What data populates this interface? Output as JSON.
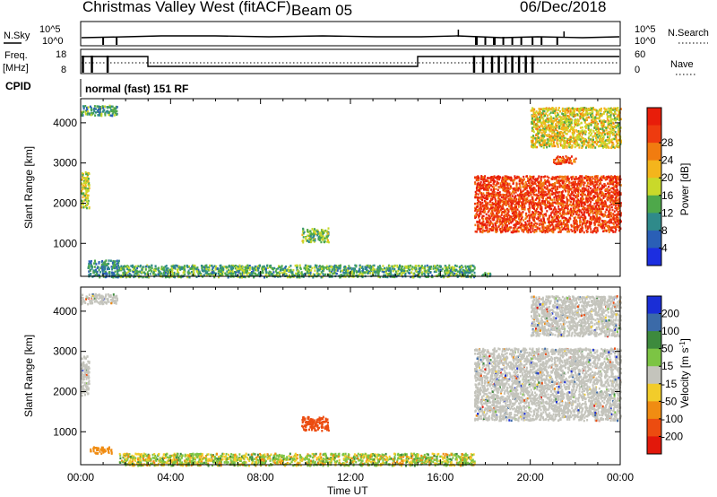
{
  "header": {
    "title": "Christmas Valley West (fitACF)",
    "beam": "Beam 05",
    "date": "06/Dec/2018"
  },
  "top_panels": {
    "nsky_label": "N.Sky",
    "nsky_ticks": [
      "10^5",
      "10^0"
    ],
    "nsearch_label": "N.Search",
    "nsearch_ticks": [
      "10^5",
      "10^0"
    ],
    "freq_label": "Freq.",
    "freq_unit": "[MHz]",
    "freq_ticks": [
      "18",
      "8"
    ],
    "nave_label": "Nave",
    "nave_ticks": [
      "60",
      "0"
    ],
    "cpid_label": "CPID",
    "cpid_text": "normal (fast) 151 RF"
  },
  "colors": {
    "power_scale": [
      "#1c2ee0",
      "#2a5fb6",
      "#2f8a8a",
      "#4ea84a",
      "#c9d92a",
      "#f4b51c",
      "#f17c10",
      "#ee3b0f",
      "#e81d0a"
    ],
    "velocity_scale": [
      "#1a2ed6",
      "#3b6aa8",
      "#3d8a3d",
      "#7cc444",
      "#c4c4bc",
      "#f2cc2a",
      "#f08c12",
      "#ec4c10",
      "#e2180b"
    ],
    "ground_scatter": "#c4c4bc"
  },
  "chart_data": [
    {
      "type": "heatmap",
      "name_id": "power",
      "xlabel": "",
      "ylabel": "Slant Range [km]",
      "x_range_hours": [
        0,
        24
      ],
      "ylim": [
        180,
        4600
      ],
      "yticks": [
        "1000",
        "2000",
        "3000",
        "4000"
      ],
      "colorbar_label": "Power [dB]",
      "colorbar_ticks": [
        "4",
        "8",
        "12",
        "16",
        "20",
        "24",
        "28"
      ],
      "regions": [
        {
          "x": [
            0.0,
            0.35
          ],
          "y": [
            1900,
            2800
          ],
          "level": 0.5
        },
        {
          "x": [
            0.0,
            1.6
          ],
          "y": [
            4200,
            4450
          ],
          "level": 0.3
        },
        {
          "x": [
            0.3,
            1.7
          ],
          "y": [
            180,
            600
          ],
          "level": 0.25
        },
        {
          "x": [
            1.7,
            17.5
          ],
          "y": [
            180,
            480
          ],
          "level": 0.35
        },
        {
          "x": [
            9.8,
            11.0
          ],
          "y": [
            1050,
            1400
          ],
          "level": 0.4
        },
        {
          "x": [
            17.5,
            24.0
          ],
          "y": [
            1300,
            2700
          ],
          "level": 0.9
        },
        {
          "x": [
            20.0,
            24.0
          ],
          "y": [
            3400,
            4400
          ],
          "level": 0.55
        },
        {
          "x": [
            21.0,
            22.0
          ],
          "y": [
            3000,
            3200
          ],
          "level": 0.85
        },
        {
          "x": [
            17.8,
            18.2
          ],
          "y": [
            180,
            300
          ],
          "level": 0.4
        }
      ]
    },
    {
      "type": "heatmap",
      "name_id": "velocity",
      "xlabel": "Time UT",
      "ylabel": "Slant Range [km]",
      "x_range_hours": [
        0,
        24
      ],
      "ylim": [
        180,
        4600
      ],
      "xticks": [
        "00:00",
        "04:00",
        "08:00",
        "12:00",
        "16:00",
        "20:00",
        "00:00"
      ],
      "yticks": [
        "1000",
        "2000",
        "3000",
        "4000"
      ],
      "colorbar_label": "Velocity [m s",
      "colorbar_ticks": [
        "200",
        "100",
        "50",
        "15",
        "-15",
        "-50",
        "-100",
        "-200"
      ],
      "regions": [
        {
          "x": [
            0.0,
            0.35
          ],
          "y": [
            1900,
            2900
          ],
          "level": "ground"
        },
        {
          "x": [
            0.0,
            1.6
          ],
          "y": [
            4200,
            4450
          ],
          "level": "ground"
        },
        {
          "x": [
            0.4,
            1.4
          ],
          "y": [
            480,
            640
          ],
          "level": "-50"
        },
        {
          "x": [
            1.7,
            17.5
          ],
          "y": [
            180,
            480
          ],
          "level": "mixed"
        },
        {
          "x": [
            9.8,
            11.0
          ],
          "y": [
            1050,
            1400
          ],
          "level": "-100"
        },
        {
          "x": [
            17.5,
            24.0
          ],
          "y": [
            1300,
            3100
          ],
          "level": "ground"
        },
        {
          "x": [
            20.0,
            24.0
          ],
          "y": [
            3400,
            4400
          ],
          "level": "ground"
        }
      ]
    }
  ]
}
